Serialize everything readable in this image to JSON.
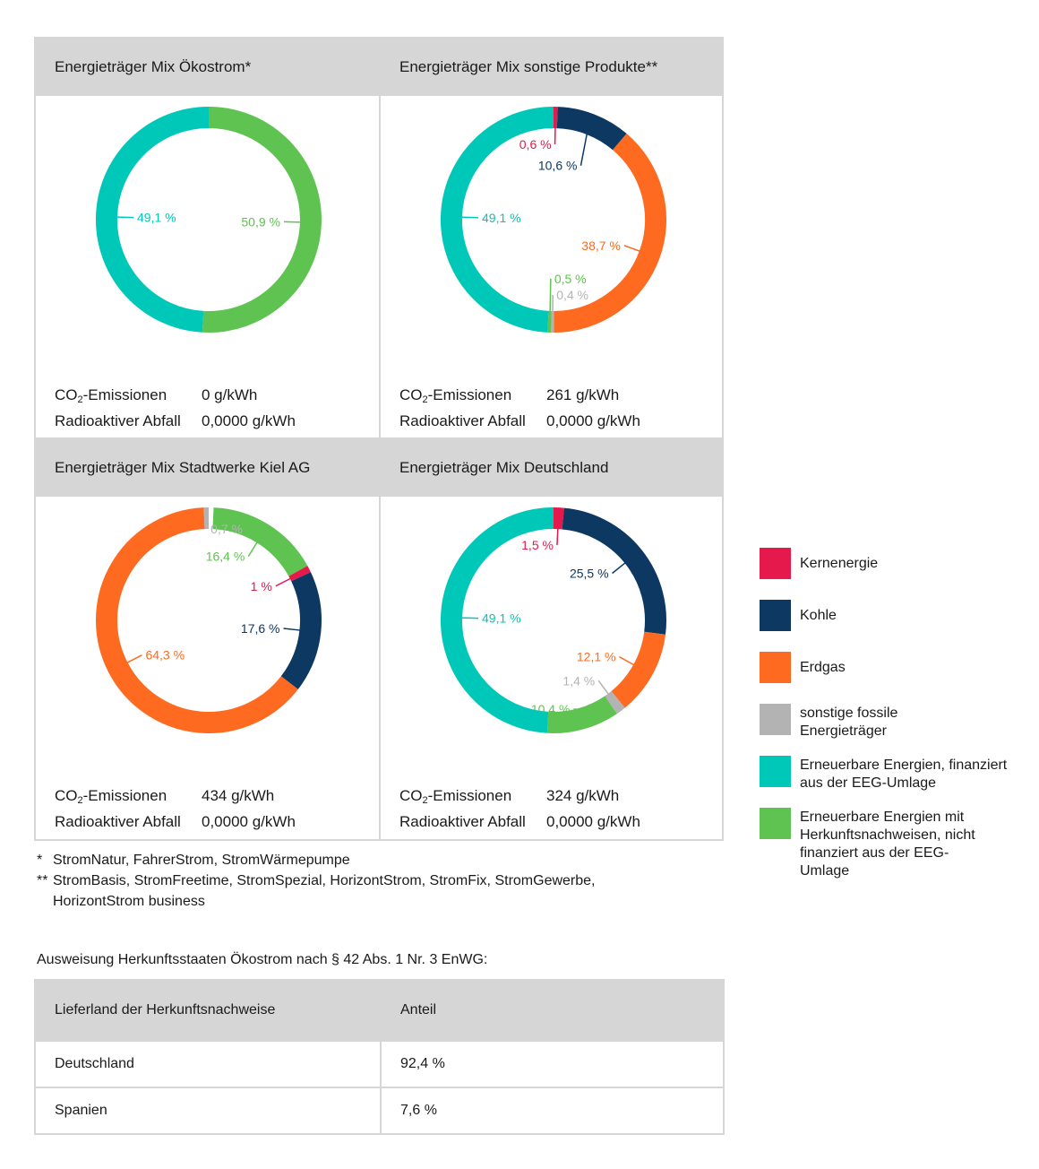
{
  "colors": {
    "Kernenergie": "#e5194c",
    "Kohle": "#0c3862",
    "Erdgas": "#fe6a1f",
    "sonstige fossile": "#b3b3b3",
    "EEG": "#00c8b8",
    "HKN": "#5ec350"
  },
  "chart_data": [
    {
      "type": "pie",
      "title": "Energieträger Mix Ökostrom*",
      "slices": [
        {
          "key": "HKN",
          "value": 50.9,
          "label": "50,9 %"
        },
        {
          "key": "EEG",
          "value": 49.1,
          "label": "49,1 %"
        }
      ],
      "co2_label": "-Emissionen",
      "co2_value": "0 g/kWh",
      "waste_label": "Radioaktiver Abfall",
      "waste_value": "0,0000 g/kWh"
    },
    {
      "type": "pie",
      "title": "Energieträger Mix sonstige Produkte**",
      "slices": [
        {
          "key": "Kernenergie",
          "value": 0.6,
          "label": "0,6 %"
        },
        {
          "key": "Kohle",
          "value": 10.6,
          "label": "10,6 %"
        },
        {
          "key": "Erdgas",
          "value": 38.7,
          "label": "38,7 %"
        },
        {
          "key": "sonstige fossile",
          "value": 0.4,
          "label": "0,4 %"
        },
        {
          "key": "HKN",
          "value": 0.5,
          "label": "0,5 %"
        },
        {
          "key": "EEG",
          "value": 49.1,
          "label": "49,1 %"
        }
      ],
      "co2_label": "-Emissionen",
      "co2_value": "261 g/kWh",
      "waste_label": "Radioaktiver Abfall",
      "waste_value": "0,0000 g/kWh"
    },
    {
      "type": "pie",
      "title": "Energieträger Mix Stadtwerke Kiel AG",
      "slices": [
        {
          "key": "HKN",
          "value": 16.4,
          "label": "16,4 %"
        },
        {
          "key": "Kernenergie",
          "value": 1.0,
          "label": "1 %"
        },
        {
          "key": "Kohle",
          "value": 17.6,
          "label": "17,6 %"
        },
        {
          "key": "Erdgas",
          "value": 64.3,
          "label": "64,3 %"
        },
        {
          "key": "sonstige fossile",
          "value": 0.7,
          "label": "0,7 %"
        }
      ],
      "start_offset": 0.7,
      "co2_label": "-Emissionen",
      "co2_value": "434 g/kWh",
      "waste_label": "Radioaktiver Abfall",
      "waste_value": "0,0000 g/kWh"
    },
    {
      "type": "pie",
      "title": "Energieträger Mix Deutschland",
      "slices": [
        {
          "key": "Kernenergie",
          "value": 1.5,
          "label": "1,5 %"
        },
        {
          "key": "Kohle",
          "value": 25.5,
          "label": "25,5 %"
        },
        {
          "key": "Erdgas",
          "value": 12.1,
          "label": "12,1 %"
        },
        {
          "key": "sonstige fossile",
          "value": 1.4,
          "label": "1,4 %"
        },
        {
          "key": "HKN",
          "value": 10.4,
          "label": "10,4 %"
        },
        {
          "key": "EEG",
          "value": 49.1,
          "label": "49,1 %"
        }
      ],
      "co2_label": "-Emissionen",
      "co2_value": "324 g/kWh",
      "waste_label": "Radioaktiver Abfall",
      "waste_value": "0,0000 g/kWh"
    }
  ],
  "legend": [
    {
      "key": "Kernenergie",
      "label": "Kernenergie"
    },
    {
      "key": "Kohle",
      "label": "Kohle"
    },
    {
      "key": "Erdgas",
      "label": "Erdgas"
    },
    {
      "key": "sonstige fossile",
      "label": "sonstige fossile Energieträger"
    },
    {
      "key": "EEG",
      "label": "Erneuerbare Energien, finanziert aus der EEG-Umlage"
    },
    {
      "key": "HKN",
      "label": "Erneuerbare Energien mit Herkunftsnachweisen, nicht finanziert aus der EEG-Umlage"
    }
  ],
  "co2_prefix": "CO",
  "co2_sub": "2",
  "notes": [
    {
      "marker": "*",
      "text": "StromNatur, FahrerStrom, StromWärmepumpe"
    },
    {
      "marker": "**",
      "text": "StromBasis, StromFreetime, StromSpezial, HorizontStrom, StromFix, StromGewerbe, HorizontStrom business"
    }
  ],
  "origin_heading": "Ausweisung Herkunftsstaaten Ökostrom nach § 42 Abs. 1 Nr. 3 EnWG:",
  "origin_table": {
    "headers": [
      "Lieferland der Herkunftsnachweise",
      "Anteil"
    ],
    "rows": [
      [
        "Deutschland",
        "92,4 %"
      ],
      [
        "Spanien",
        "7,6 %"
      ]
    ]
  }
}
